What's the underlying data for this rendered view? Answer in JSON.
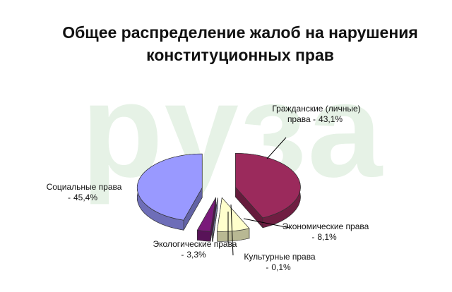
{
  "watermark": "руза",
  "chart_data": {
    "type": "pie",
    "title": "Общее распределение жалоб на нарушения конституционных прав",
    "categories": [
      "Гражданские (личные) права -",
      "Экономические права -",
      "Культурные права -",
      "Экологические права -",
      "Социальные права -"
    ],
    "values": [
      43.1,
      8.1,
      0.1,
      3.3,
      45.4
    ],
    "value_labels": [
      "43,1%",
      "8,1%",
      "0,1%",
      "3,3%",
      "45,4%"
    ],
    "colors": [
      "#9b2a5c",
      "#ffffcc",
      "#c0c0ff",
      "#7a1a7a",
      "#9999ff"
    ]
  }
}
